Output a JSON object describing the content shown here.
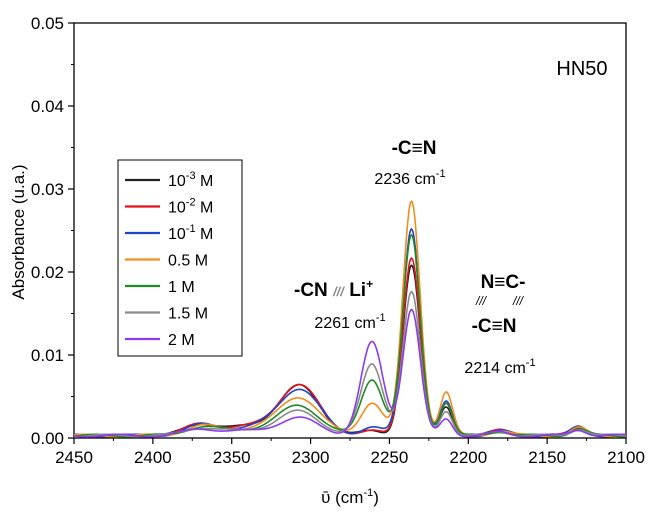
{
  "chart_data": {
    "type": "line",
    "sample_label": "HN50",
    "xlabel_symbol": "ῡ",
    "xlabel_unit": " (cm",
    "xlabel_sup": "-1",
    "xlabel_close": ")",
    "ylabel": "Absorbance (u.a.)",
    "xlim": [
      2450,
      2100
    ],
    "ylim": [
      0,
      0.05
    ],
    "xticks": [
      2450,
      2400,
      2350,
      2300,
      2250,
      2200,
      2150,
      2100
    ],
    "xtick_labels": [
      "2450",
      "2400",
      "2350",
      "2300",
      "2250",
      "2200",
      "2150",
      "2100"
    ],
    "yticks": [
      0.0,
      0.01,
      0.02,
      0.03,
      0.04,
      0.05
    ],
    "ytick_labels": [
      "0.00",
      "0.01",
      "0.02",
      "0.03",
      "0.04",
      "0.05"
    ],
    "legend": {
      "position": "left",
      "entries": [
        {
          "base": "10",
          "sup": "-3",
          "unit": " M"
        },
        {
          "base": "10",
          "sup": "-2",
          "unit": " M"
        },
        {
          "base": "10",
          "sup": "-1",
          "unit": " M"
        },
        {
          "base": "0.5 M",
          "sup": "",
          "unit": ""
        },
        {
          "base": "1 M",
          "sup": "",
          "unit": ""
        },
        {
          "base": "1.5 M",
          "sup": "",
          "unit": ""
        },
        {
          "base": "2 M",
          "sup": "",
          "unit": ""
        }
      ]
    },
    "annotations": {
      "cn_free_label": "-C≡N",
      "cn_free_wavenumber": "2236 cm",
      "cn_free_sup": "-1",
      "cn_li_label_a": "-CN",
      "cn_li_sep": "///",
      "cn_li_label_b": "Li",
      "cn_li_sup": "+",
      "cn_li_wavenumber": "2261 cm",
      "cn_li_wsup": "-1",
      "dimer_top": "N≡C-",
      "dimer_sep": "///",
      "dimer_bottom": "-C≡N",
      "dimer_wavenumber": "2214 cm",
      "dimer_sup": "-1"
    },
    "peak_model": {
      "peaks": [
        {
          "center": 2307,
          "sigma": 13
        },
        {
          "center": 2261,
          "sigma": 7
        },
        {
          "center": 2236,
          "sigma": 5.5
        },
        {
          "center": 2214,
          "sigma": 4
        },
        {
          "center": 2340,
          "sigma": 18
        },
        {
          "center": 2370,
          "sigma": 10
        },
        {
          "center": 2130,
          "sigma": 5
        },
        {
          "center": 2180,
          "sigma": 6
        }
      ]
    },
    "series": [
      {
        "color": "#222222",
        "peak_heights": [
          0.0058,
          0.0005,
          0.0205,
          0.0035,
          0.001,
          0.0012,
          0.001,
          0.0006
        ]
      },
      {
        "color": "#e3121b",
        "peak_heights": [
          0.0059,
          0.0005,
          0.0215,
          0.0038,
          0.001,
          0.0012,
          0.001,
          0.0006
        ]
      },
      {
        "color": "#2244cc",
        "peak_heights": [
          0.0055,
          0.001,
          0.025,
          0.004,
          0.0009,
          0.0011,
          0.001,
          0.0006
        ]
      },
      {
        "color": "#f28c1f",
        "peak_heights": [
          0.0045,
          0.004,
          0.0282,
          0.0052,
          0.0008,
          0.001,
          0.0009,
          0.0006
        ]
      },
      {
        "color": "#22892a",
        "peak_heights": [
          0.0035,
          0.0068,
          0.024,
          0.004,
          0.0007,
          0.0009,
          0.0008,
          0.0005
        ]
      },
      {
        "color": "#8a8a8a",
        "peak_heights": [
          0.0028,
          0.0086,
          0.0172,
          0.003,
          0.0006,
          0.0008,
          0.0008,
          0.0005
        ]
      },
      {
        "color": "#8a3cf0",
        "peak_heights": [
          0.002,
          0.0112,
          0.0152,
          0.002,
          0.0005,
          0.0007,
          0.0007,
          0.0004
        ]
      }
    ]
  }
}
